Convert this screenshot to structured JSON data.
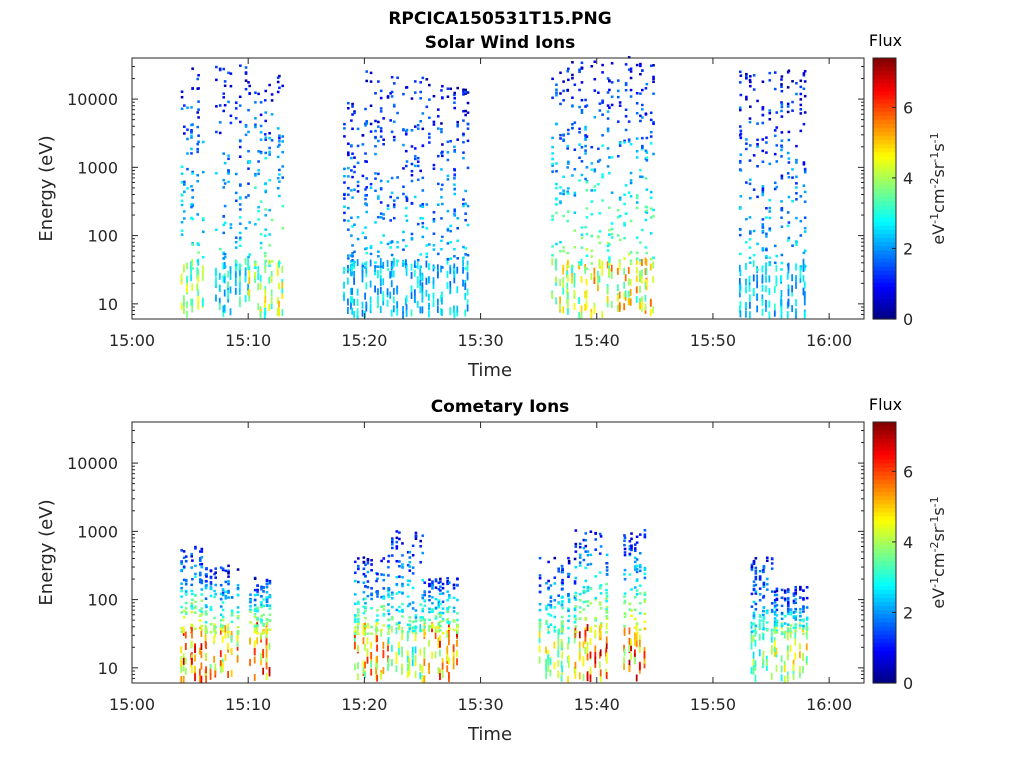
{
  "figure_title": "RPCICA150531T15.PNG",
  "chart_data": [
    {
      "type": "heatmap",
      "title": "Solar Wind Ions",
      "xlabel": "Time",
      "ylabel": "Energy (eV)",
      "x_ticks": [
        "15:00",
        "15:10",
        "15:20",
        "15:30",
        "15:40",
        "15:50",
        "16:00"
      ],
      "y_ticks": [
        "10",
        "100",
        "1000",
        "10000"
      ],
      "yscale": "log",
      "xlim": [
        "15:00",
        "16:03"
      ],
      "ylim": [
        6,
        40000
      ],
      "colorbar": {
        "title": "Flux",
        "label": "eV-1cm-2sr-1s-1",
        "ticks": [
          0,
          2,
          4,
          6
        ],
        "range": [
          0,
          7.4
        ],
        "colormap": "jet"
      },
      "bursts": [
        {
          "start": "15:04",
          "end": "15:05",
          "emax": 30000,
          "low_flux": 4.5
        },
        {
          "start": "15:07",
          "end": "15:09",
          "emax": 30000,
          "low_flux": 3.5
        },
        {
          "start": "15:10",
          "end": "15:12",
          "emax": 25000,
          "low_flux": 5.0
        },
        {
          "start": "15:18",
          "end": "15:19",
          "emax": 10000,
          "low_flux": 3.0
        },
        {
          "start": "15:20",
          "end": "15:22",
          "emax": 25000,
          "low_flux": 3.0
        },
        {
          "start": "15:23",
          "end": "15:25",
          "emax": 20000,
          "low_flux": 3.0
        },
        {
          "start": "15:26",
          "end": "15:28",
          "emax": 15000,
          "low_flux": 3.0
        },
        {
          "start": "15:36",
          "end": "15:38",
          "emax": 35000,
          "low_flux": 5.0
        },
        {
          "start": "15:39",
          "end": "15:41",
          "emax": 35000,
          "low_flux": 5.5
        },
        {
          "start": "15:42",
          "end": "15:44",
          "emax": 40000,
          "low_flux": 5.5
        },
        {
          "start": "15:52",
          "end": "15:54",
          "emax": 25000,
          "low_flux": 3.0
        },
        {
          "start": "15:55",
          "end": "15:57",
          "emax": 25000,
          "low_flux": 3.0
        }
      ]
    },
    {
      "type": "heatmap",
      "title": "Cometary Ions",
      "xlabel": "Time",
      "ylabel": "Energy (eV)",
      "x_ticks": [
        "15:00",
        "15:10",
        "15:20",
        "15:30",
        "15:40",
        "15:50",
        "16:00"
      ],
      "y_ticks": [
        "10",
        "100",
        "1000",
        "10000"
      ],
      "yscale": "log",
      "xlim": [
        "15:00",
        "16:03"
      ],
      "ylim": [
        6,
        40000
      ],
      "colorbar": {
        "title": "Flux",
        "label": "eV-1cm-2sr-1s-1",
        "ticks": [
          0,
          2,
          4,
          6
        ],
        "range": [
          0,
          7.4
        ],
        "colormap": "jet"
      },
      "bursts": [
        {
          "start": "15:04",
          "end": "15:05",
          "emax": 600,
          "low_flux": 6.8
        },
        {
          "start": "15:06",
          "end": "15:08",
          "emax": 300,
          "low_flux": 6.0
        },
        {
          "start": "15:10",
          "end": "15:11",
          "emax": 200,
          "low_flux": 6.8
        },
        {
          "start": "15:19",
          "end": "15:21",
          "emax": 400,
          "low_flux": 6.0
        },
        {
          "start": "15:22",
          "end": "15:24",
          "emax": 1000,
          "low_flux": 4.5
        },
        {
          "start": "15:25",
          "end": "15:27",
          "emax": 200,
          "low_flux": 6.5
        },
        {
          "start": "15:35",
          "end": "15:37",
          "emax": 400,
          "low_flux": 5.0
        },
        {
          "start": "15:38",
          "end": "15:40",
          "emax": 1000,
          "low_flux": 6.8
        },
        {
          "start": "15:42",
          "end": "15:43",
          "emax": 1000,
          "low_flux": 6.8
        },
        {
          "start": "15:53",
          "end": "15:54",
          "emax": 400,
          "low_flux": 4.0
        },
        {
          "start": "15:55",
          "end": "15:57",
          "emax": 150,
          "low_flux": 5.0
        }
      ]
    }
  ]
}
